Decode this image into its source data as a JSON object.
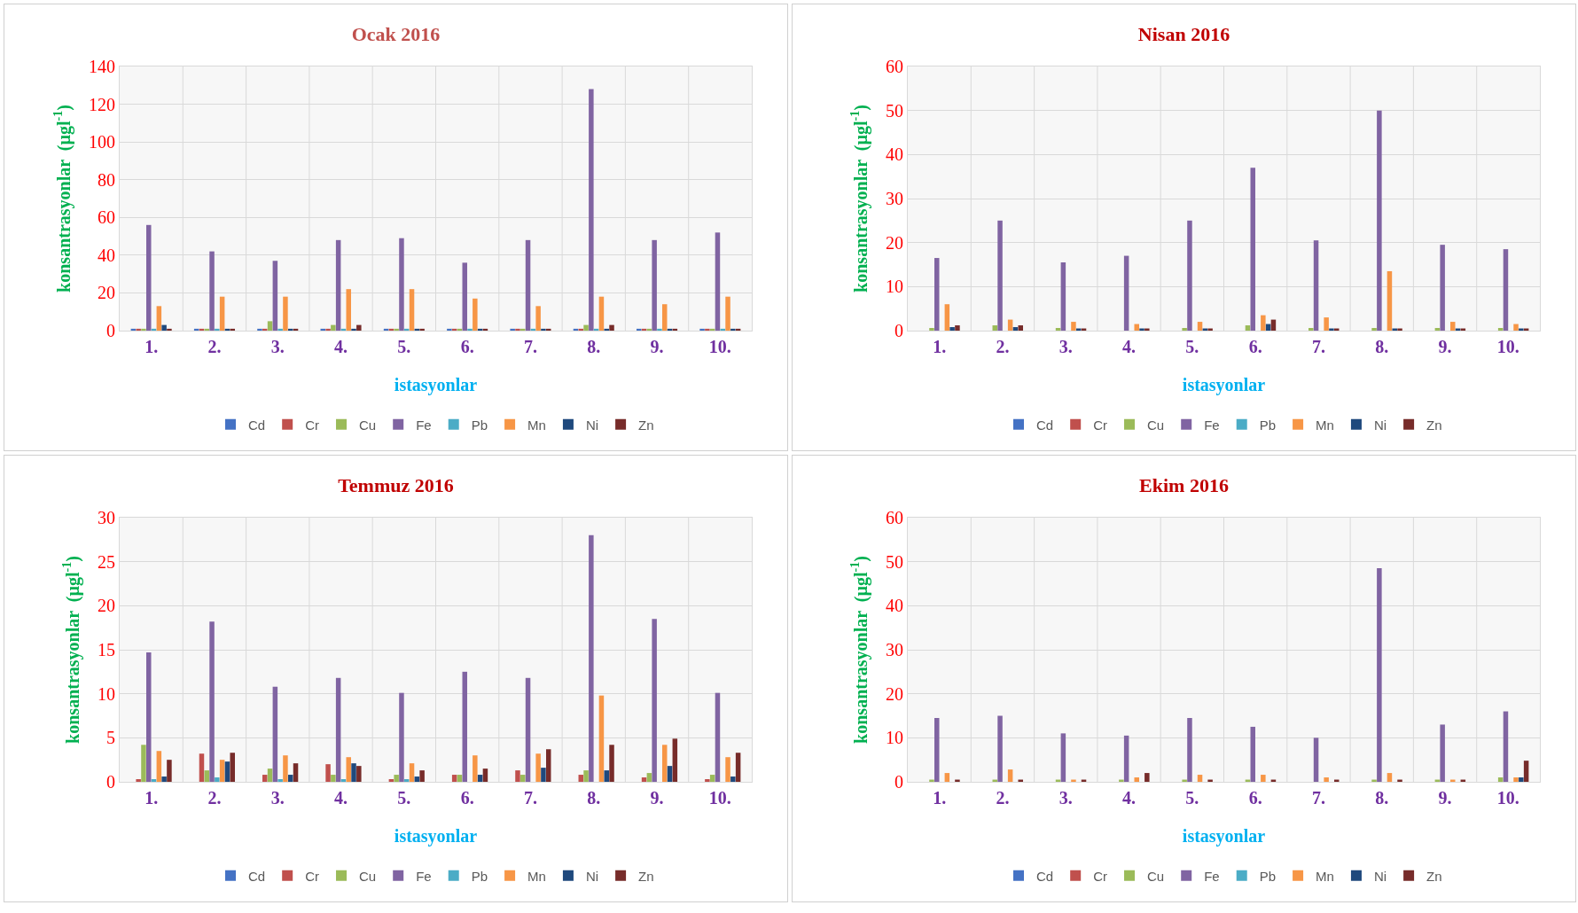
{
  "chart_data": [
    {
      "type": "bar",
      "title": "Ocak 2016",
      "xlabel": "istasyonlar",
      "ylabel": "konsantrasyonlar  (µgl$^{-1}$)",
      "categories": [
        "1.",
        "2.",
        "3.",
        "4.",
        "5.",
        "6.",
        "7.",
        "8.",
        "9.",
        "10."
      ],
      "ylim": [
        0,
        140
      ],
      "yticks": [
        0,
        20,
        40,
        60,
        80,
        100,
        120,
        140
      ],
      "grid": true,
      "legend": "bottom",
      "series": [
        {
          "name": "Cd",
          "color": "#4472c4",
          "values": [
            1,
            1,
            1,
            1,
            1,
            1,
            1,
            1,
            1,
            1
          ]
        },
        {
          "name": "Cr",
          "color": "#c0504d",
          "values": [
            1,
            1,
            1,
            1,
            1,
            1,
            1,
            1,
            1,
            1
          ]
        },
        {
          "name": "Cu",
          "color": "#9bbb59",
          "values": [
            1,
            1,
            5,
            3,
            1,
            1,
            1,
            3,
            1,
            1
          ]
        },
        {
          "name": "Fe",
          "color": "#8064a2",
          "values": [
            56,
            42,
            37,
            48,
            49,
            36,
            48,
            128,
            48,
            52
          ]
        },
        {
          "name": "Pb",
          "color": "#4bacc6",
          "values": [
            1,
            1,
            1,
            1,
            1,
            1,
            1,
            1,
            1,
            1
          ]
        },
        {
          "name": "Mn",
          "color": "#f79646",
          "values": [
            13,
            18,
            18,
            22,
            22,
            17,
            13,
            18,
            14,
            18
          ]
        },
        {
          "name": "Ni",
          "color": "#1f497d",
          "values": [
            3,
            1,
            1,
            1,
            1,
            1,
            1,
            1,
            1,
            1
          ]
        },
        {
          "name": "Zn",
          "color": "#772c2a",
          "values": [
            1,
            1,
            1,
            3,
            1,
            1,
            1,
            3,
            1,
            1
          ]
        }
      ]
    },
    {
      "type": "bar",
      "title": "Nisan 2016",
      "xlabel": "istasyonlar",
      "ylabel": "konsantrasyonlar  (µgl$^{-1}$)",
      "categories": [
        "1.",
        "2.",
        "3.",
        "4.",
        "5.",
        "6.",
        "7.",
        "8.",
        "9.",
        "10."
      ],
      "ylim": [
        0,
        60
      ],
      "yticks": [
        0,
        10,
        20,
        30,
        40,
        50,
        60
      ],
      "grid": true,
      "legend": "bottom",
      "series": [
        {
          "name": "Cd",
          "color": "#4472c4",
          "values": [
            0,
            0,
            0,
            0,
            0,
            0,
            0,
            0,
            0,
            0
          ]
        },
        {
          "name": "Cr",
          "color": "#c0504d",
          "values": [
            0,
            0,
            0,
            0,
            0,
            0,
            0,
            0,
            0,
            0
          ]
        },
        {
          "name": "Cu",
          "color": "#9bbb59",
          "values": [
            0.6,
            1.2,
            0.6,
            0,
            0.6,
            1.2,
            0.6,
            0.6,
            0.6,
            0.6
          ]
        },
        {
          "name": "Fe",
          "color": "#8064a2",
          "values": [
            16.5,
            25,
            15.5,
            17,
            25,
            37,
            20.5,
            50,
            19.5,
            18.5
          ]
        },
        {
          "name": "Pb",
          "color": "#4bacc6",
          "values": [
            0,
            0,
            0,
            0,
            0,
            0,
            0,
            0,
            0,
            0
          ]
        },
        {
          "name": "Mn",
          "color": "#f79646",
          "values": [
            6,
            2.5,
            2,
            1.5,
            2,
            3.5,
            3,
            13.5,
            2,
            1.5
          ]
        },
        {
          "name": "Ni",
          "color": "#1f497d",
          "values": [
            0.8,
            0.8,
            0.5,
            0.5,
            0.5,
            1.5,
            0.5,
            0.5,
            0.5,
            0.5
          ]
        },
        {
          "name": "Zn",
          "color": "#772c2a",
          "values": [
            1.2,
            1.2,
            0.5,
            0.5,
            0.5,
            2.5,
            0.5,
            0.5,
            0.5,
            0.5
          ]
        }
      ]
    },
    {
      "type": "bar",
      "title": "Temmuz 2016",
      "xlabel": "istasyonlar",
      "ylabel": "konsantrasyonlar  (µgl$^{-1}$)",
      "categories": [
        "1.",
        "2.",
        "3.",
        "4.",
        "5.",
        "6.",
        "7.",
        "8.",
        "9.",
        "10."
      ],
      "ylim": [
        0,
        30
      ],
      "yticks": [
        0,
        5,
        10,
        15,
        20,
        25,
        30
      ],
      "grid": true,
      "legend": "bottom",
      "series": [
        {
          "name": "Cd",
          "color": "#4472c4",
          "values": [
            0,
            0,
            0,
            0,
            0,
            0,
            0,
            0,
            0,
            0
          ]
        },
        {
          "name": "Cr",
          "color": "#c0504d",
          "values": [
            0.3,
            3.2,
            0.8,
            2,
            0.3,
            0.8,
            1.3,
            0.8,
            0.5,
            0.3
          ]
        },
        {
          "name": "Cu",
          "color": "#9bbb59",
          "values": [
            4.2,
            1.3,
            1.5,
            0.8,
            0.8,
            0.8,
            0.8,
            1.3,
            1,
            0.8
          ]
        },
        {
          "name": "Fe",
          "color": "#8064a2",
          "values": [
            14.7,
            18.2,
            10.8,
            11.8,
            10.1,
            12.5,
            11.8,
            28,
            18.5,
            10.1
          ]
        },
        {
          "name": "Pb",
          "color": "#4bacc6",
          "values": [
            0.3,
            0.5,
            0.3,
            0.3,
            0.3,
            0,
            0,
            0,
            0,
            0
          ]
        },
        {
          "name": "Mn",
          "color": "#f79646",
          "values": [
            3.5,
            2.5,
            3,
            2.8,
            2.1,
            3,
            3.2,
            9.8,
            4.2,
            2.8
          ]
        },
        {
          "name": "Ni",
          "color": "#1f497d",
          "values": [
            0.6,
            2.3,
            0.8,
            2.1,
            0.6,
            0.8,
            1.6,
            1.3,
            1.8,
            0.6
          ]
        },
        {
          "name": "Zn",
          "color": "#772c2a",
          "values": [
            2.5,
            3.3,
            2.1,
            1.8,
            1.3,
            1.5,
            3.7,
            4.2,
            4.9,
            3.3
          ]
        }
      ]
    },
    {
      "type": "bar",
      "title": "Ekim 2016",
      "xlabel": "istasyonlar",
      "ylabel": "konsantrasyonlar  (µgl$^{-1}$)",
      "categories": [
        "1.",
        "2.",
        "3.",
        "4.",
        "5.",
        "6.",
        "7.",
        "8.",
        "9.",
        "10."
      ],
      "ylim": [
        0,
        60
      ],
      "yticks": [
        0,
        10,
        20,
        30,
        40,
        50,
        60
      ],
      "grid": true,
      "legend": "bottom",
      "series": [
        {
          "name": "Cd",
          "color": "#4472c4",
          "values": [
            0,
            0,
            0,
            0,
            0,
            0,
            0,
            0,
            0,
            0
          ]
        },
        {
          "name": "Cr",
          "color": "#c0504d",
          "values": [
            0,
            0,
            0,
            0,
            0,
            0,
            0,
            0,
            0,
            0
          ]
        },
        {
          "name": "Cu",
          "color": "#9bbb59",
          "values": [
            0.5,
            0.5,
            0.5,
            0.5,
            0.5,
            0.5,
            0,
            0.5,
            0.5,
            1
          ]
        },
        {
          "name": "Fe",
          "color": "#8064a2",
          "values": [
            14.5,
            15,
            11,
            10.5,
            14.5,
            12.5,
            10,
            48.5,
            13,
            16
          ]
        },
        {
          "name": "Pb",
          "color": "#4bacc6",
          "values": [
            0,
            0,
            0,
            0,
            0,
            0,
            0,
            0,
            0,
            0
          ]
        },
        {
          "name": "Mn",
          "color": "#f79646",
          "values": [
            2,
            2.8,
            0.5,
            1,
            1.6,
            1.6,
            1,
            2,
            0.5,
            1
          ]
        },
        {
          "name": "Ni",
          "color": "#1f497d",
          "values": [
            0,
            0,
            0,
            0,
            0,
            0,
            0,
            0,
            0,
            1
          ]
        },
        {
          "name": "Zn",
          "color": "#772c2a",
          "values": [
            0.5,
            0.5,
            0.5,
            2,
            0.5,
            0.5,
            0.5,
            0.5,
            0.5,
            4.8
          ]
        }
      ]
    }
  ]
}
